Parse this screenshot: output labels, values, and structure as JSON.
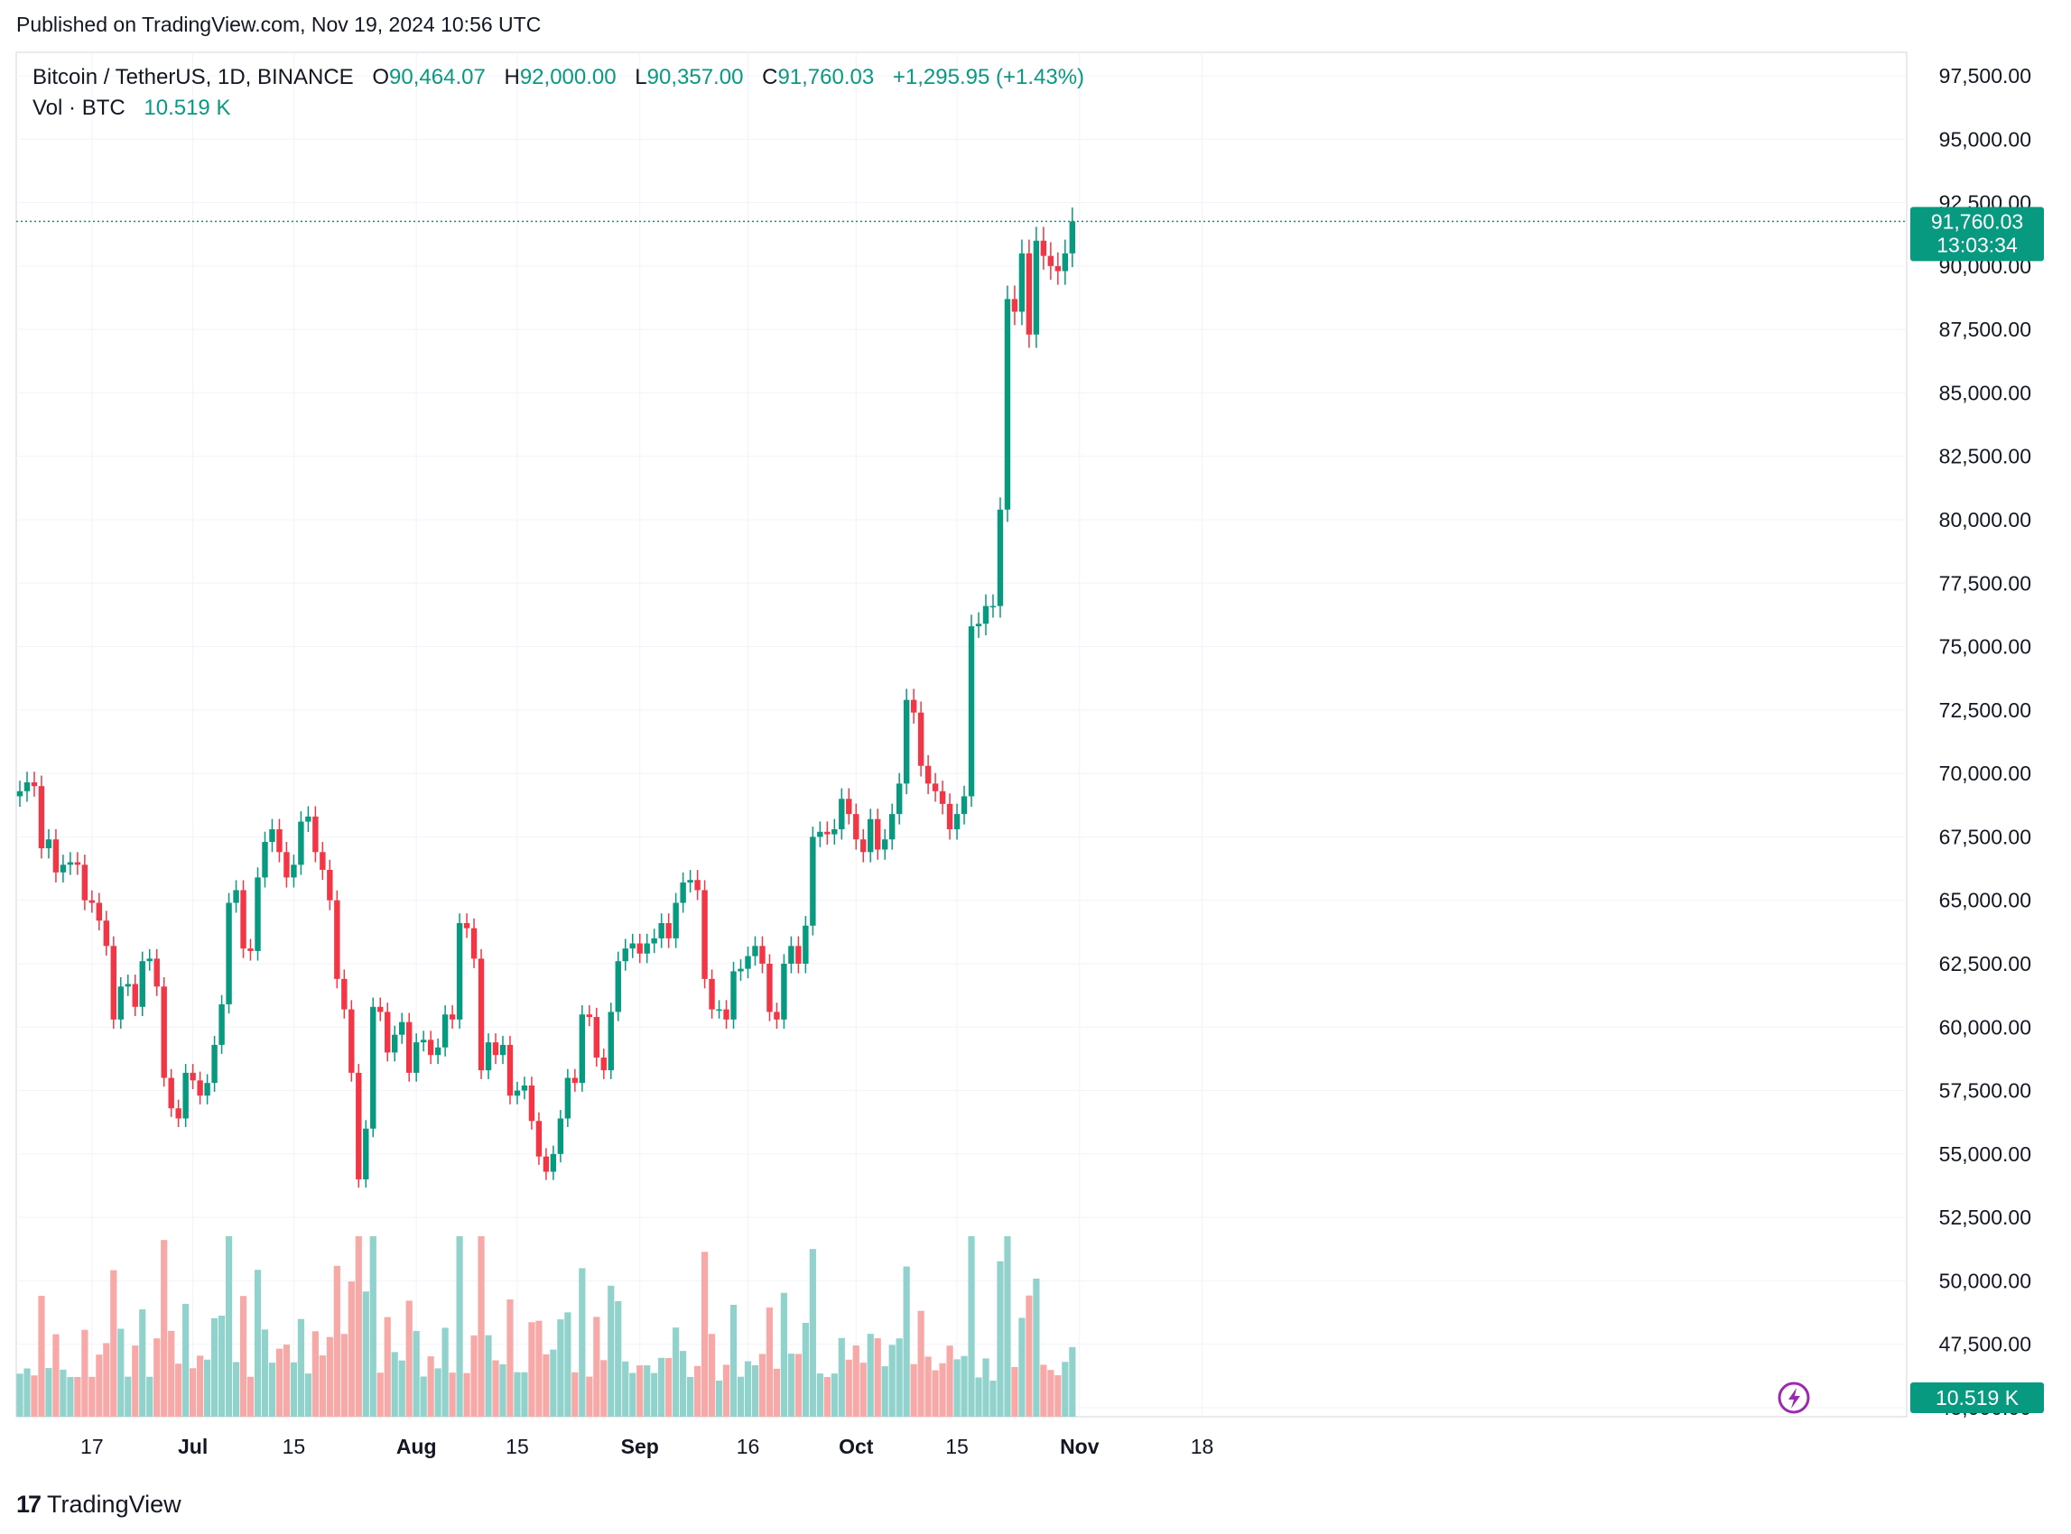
{
  "header": {
    "published": "Published on TradingView.com, Nov 19, 2024 10:56 UTC"
  },
  "legend": {
    "symbol": "Bitcoin / TetherUS, 1D, BINANCE",
    "o_label": "O",
    "o_value": "90,464.07",
    "h_label": "H",
    "h_value": "92,000.00",
    "l_label": "L",
    "l_value": "90,357.00",
    "c_label": "C",
    "c_value": "91,760.03",
    "change": "+1,295.95 (+1.43%)",
    "vol_label": "Vol · BTC",
    "vol_value": "10.519 K"
  },
  "badges": {
    "last_price": "91,760.03",
    "countdown": "13:03:34",
    "volume": "10.519 K"
  },
  "footer": {
    "brand": "TradingView"
  },
  "colors": {
    "up": "#089981",
    "down": "#f23645",
    "vol_up": "#92d2cc",
    "vol_down": "#f7a9a7",
    "grid": "#f0f3fa"
  },
  "chart_data": {
    "type": "candlestick",
    "symbol": "Bitcoin / TetherUS",
    "interval": "1D",
    "exchange": "BINANCE",
    "y_ticks": [
      "97,500.00",
      "95,000.00",
      "92,500.00",
      "90,000.00",
      "87,500.00",
      "85,000.00",
      "82,500.00",
      "80,000.00",
      "77,500.00",
      "75,000.00",
      "72,500.00",
      "70,000.00",
      "67,500.00",
      "65,000.00",
      "62,500.00",
      "60,000.00",
      "57,500.00",
      "55,000.00",
      "52,500.00",
      "50,000.00",
      "47,500.00",
      "45,000.00"
    ],
    "y_range": [
      45000,
      97500
    ],
    "x_ticks": [
      {
        "label": "17",
        "date": "2024-06-17"
      },
      {
        "label": "Jul",
        "date": "2024-07-01"
      },
      {
        "label": "15",
        "date": "2024-07-15"
      },
      {
        "label": "Aug",
        "date": "2024-08-01"
      },
      {
        "label": "15",
        "date": "2024-08-15"
      },
      {
        "label": "Sep",
        "date": "2024-09-01"
      },
      {
        "label": "16",
        "date": "2024-09-16"
      },
      {
        "label": "Oct",
        "date": "2024-10-01"
      },
      {
        "label": "15",
        "date": "2024-10-15"
      },
      {
        "label": "Nov",
        "date": "2024-11-01"
      },
      {
        "label": "18",
        "date": "2024-11-18"
      }
    ],
    "start_date": "2024-06-07",
    "end_date": "2024-11-19",
    "close": [
      69300,
      69650,
      69500,
      67050,
      67400,
      66100,
      66400,
      66500,
      66400,
      65000,
      64900,
      64200,
      63200,
      60300,
      61600,
      61700,
      60800,
      62600,
      62700,
      61600,
      58000,
      56800,
      56400,
      58200,
      57900,
      57300,
      57800,
      59300,
      60900,
      64900,
      65400,
      63100,
      63000,
      65900,
      67300,
      67800,
      66900,
      65900,
      66400,
      68100,
      68300,
      66900,
      66200,
      65000,
      61900,
      60700,
      58200,
      54000,
      56000,
      60800,
      60600,
      59000,
      59700,
      60200,
      58200,
      59400,
      59500,
      58900,
      59200,
      60500,
      60300,
      64100,
      63900,
      62700,
      58300,
      59400,
      58900,
      59300,
      57300,
      57500,
      57700,
      56300,
      54900,
      54300,
      55000,
      56400,
      58000,
      57800,
      60500,
      60400,
      58800,
      58300,
      60600,
      62600,
      63100,
      63300,
      62900,
      63300,
      63500,
      64100,
      63500,
      64900,
      65700,
      65800,
      65400,
      61900,
      60700,
      60700,
      60300,
      62200,
      62300,
      62800,
      63200,
      62500,
      60600,
      60300,
      62500,
      63200,
      62500,
      64000,
      67500,
      67700,
      67600,
      67800,
      69000,
      68400,
      67400,
      66900,
      68200,
      67000,
      67400,
      68400,
      69600,
      72900,
      72400,
      70300,
      69600,
      69300,
      68800,
      67800,
      68400,
      69100,
      75800,
      75900,
      76600,
      76600,
      80400,
      88700,
      88200,
      90500,
      87300,
      91000,
      90400,
      90000,
      89800,
      90500,
      91760
    ],
    "volume_unit": "BTC",
    "last_volume": "10.519 K"
  }
}
